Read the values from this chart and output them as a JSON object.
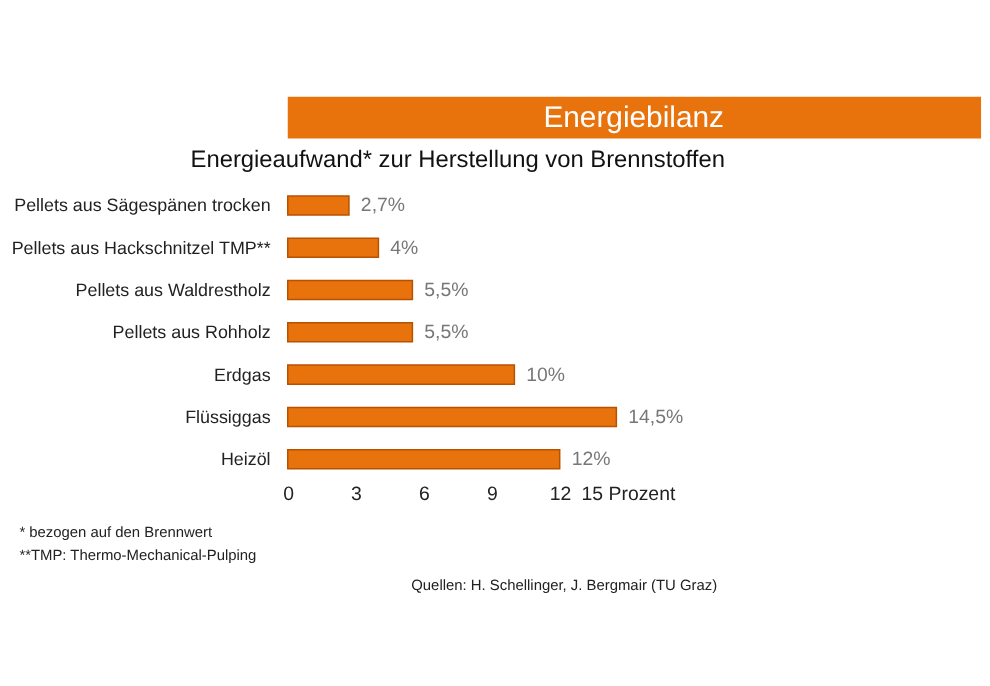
{
  "chart_data": {
    "type": "bar",
    "orientation": "horizontal",
    "title": "Energiebilanz",
    "subtitle": "Energieaufwand* zur Herstellung von Brennstoffen",
    "categories": [
      "Pellets aus Sägespänen trocken",
      "Pellets aus Hackschnitzel TMP**",
      "Pellets aus Waldrestholz",
      "Pellets aus Rohholz",
      "Erdgas",
      "Flüssiggas",
      "Heizöl"
    ],
    "values": [
      2.7,
      4,
      5.5,
      5.5,
      10,
      14.5,
      12
    ],
    "value_labels": [
      "2,7%",
      "4%",
      "5,5%",
      "5,5%",
      "10%",
      "14,5%",
      "12%"
    ],
    "color": "#e8730c",
    "xlim": [
      0,
      15
    ],
    "xticks": [
      0,
      3,
      6,
      9,
      12,
      {
        "value": 15,
        "label": "15 Prozent"
      }
    ],
    "annotations": [
      "* bezogen auf den Brennwert",
      "**TMP: Thermo-Mechanical-Pulping",
      "Quellen: H. Schellinger, J. Bergmair (TU Graz)"
    ]
  }
}
